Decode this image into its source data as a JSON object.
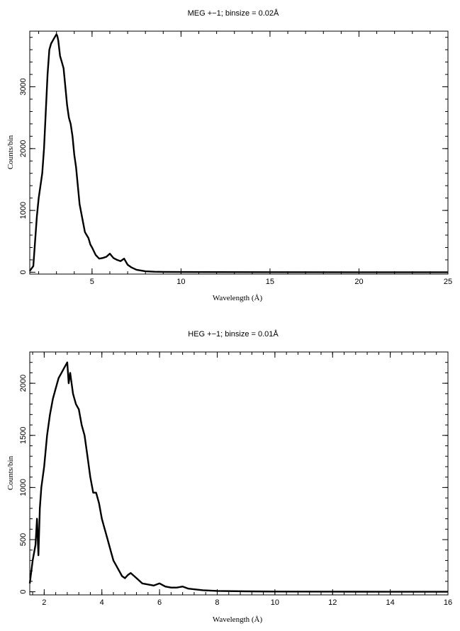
{
  "chart_data": [
    {
      "type": "line",
      "title": "MEG +−1; binsize = 0.02Å",
      "xlabel": "Wavelength (Å)",
      "ylabel": "Counts/bin",
      "xlim": [
        1.5,
        25
      ],
      "ylim": [
        -30,
        3900
      ],
      "xticks": [
        5,
        10,
        15,
        20,
        25
      ],
      "yticks": [
        0,
        1000,
        2000,
        3000
      ],
      "grid": false,
      "series": [
        {
          "color": "#000000",
          "x": [
            1.5,
            1.7,
            1.8,
            1.9,
            2.0,
            2.1,
            2.2,
            2.3,
            2.4,
            2.5,
            2.6,
            2.7,
            2.8,
            2.9,
            3.0,
            3.05,
            3.1,
            3.2,
            3.3,
            3.4,
            3.5,
            3.6,
            3.7,
            3.8,
            3.9,
            4.0,
            4.1,
            4.2,
            4.3,
            4.4,
            4.5,
            4.6,
            4.7,
            4.8,
            4.9,
            5.0,
            5.2,
            5.4,
            5.6,
            5.8,
            6.0,
            6.2,
            6.4,
            6.6,
            6.8,
            7.0,
            7.2,
            7.5,
            8.0,
            8.5,
            9.0,
            10.0,
            12.0,
            15.0,
            20.0,
            25.0
          ],
          "y": [
            20,
            100,
            500,
            900,
            1200,
            1400,
            1600,
            2000,
            2600,
            3200,
            3600,
            3700,
            3750,
            3800,
            3850,
            3820,
            3750,
            3500,
            3400,
            3300,
            3000,
            2700,
            2500,
            2400,
            2200,
            1900,
            1700,
            1400,
            1100,
            950,
            800,
            650,
            600,
            550,
            450,
            400,
            280,
            220,
            230,
            250,
            300,
            230,
            200,
            180,
            220,
            120,
            80,
            40,
            15,
            8,
            5,
            3,
            2,
            1,
            0,
            0
          ]
        }
      ]
    },
    {
      "type": "line",
      "title": "HEG +−1; binsize = 0.01Å",
      "xlabel": "Wavelength (Å)",
      "ylabel": "Counts/bin",
      "xlim": [
        1.5,
        16
      ],
      "ylim": [
        -30,
        2300
      ],
      "xticks": [
        2,
        4,
        6,
        8,
        10,
        12,
        14,
        16
      ],
      "yticks": [
        0,
        500,
        1000,
        1500,
        2000
      ],
      "grid": false,
      "series": [
        {
          "color": "#000000",
          "x": [
            1.5,
            1.6,
            1.7,
            1.75,
            1.8,
            1.85,
            1.9,
            2.0,
            2.1,
            2.2,
            2.3,
            2.4,
            2.5,
            2.6,
            2.7,
            2.8,
            2.85,
            2.9,
            3.0,
            3.1,
            3.2,
            3.3,
            3.4,
            3.5,
            3.6,
            3.7,
            3.8,
            3.9,
            4.0,
            4.1,
            4.2,
            4.3,
            4.4,
            4.5,
            4.6,
            4.7,
            4.8,
            4.9,
            5.0,
            5.2,
            5.4,
            5.6,
            5.8,
            6.0,
            6.2,
            6.4,
            6.6,
            6.8,
            7.0,
            7.5,
            8.0,
            9.0,
            10.0,
            12.0,
            14.0,
            16.0
          ],
          "y": [
            80,
            300,
            450,
            700,
            350,
            800,
            1000,
            1200,
            1500,
            1700,
            1850,
            1950,
            2050,
            2100,
            2150,
            2200,
            2000,
            2100,
            1900,
            1800,
            1750,
            1600,
            1500,
            1300,
            1100,
            950,
            950,
            850,
            700,
            600,
            500,
            400,
            300,
            250,
            200,
            150,
            130,
            160,
            180,
            130,
            80,
            70,
            60,
            80,
            50,
            40,
            40,
            50,
            30,
            15,
            8,
            4,
            2,
            1,
            0,
            0
          ]
        }
      ]
    }
  ]
}
